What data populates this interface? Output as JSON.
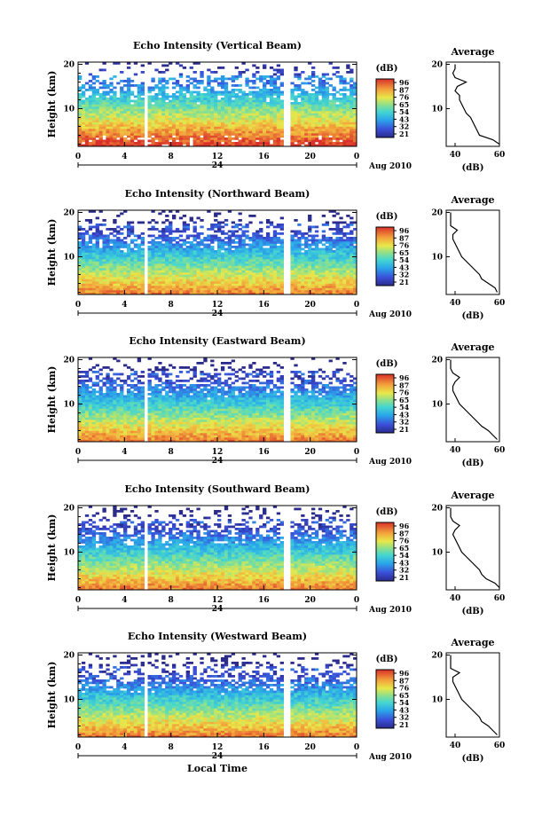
{
  "chart_data": [
    {
      "type": "heatmap",
      "title": "Echo Intensity (Vertical Beam)",
      "ylabel": "Height (km)",
      "x_ticks": [
        "0",
        "4",
        "8",
        "12",
        "16",
        "20",
        "0"
      ],
      "xlim": [
        0,
        24
      ],
      "y_ticks": [
        "10",
        "20"
      ],
      "ylim": [
        1.5,
        20.5
      ],
      "date_mid_label": "24",
      "date_label": "Aug 2010",
      "gaps_hours": [
        [
          5.7,
          6.1
        ],
        [
          17.8,
          18.2
        ]
      ],
      "colorbar": {
        "unit": "(dB)",
        "ticks": [
          "96",
          "87",
          "76",
          "65",
          "54",
          "43",
          "32",
          "21"
        ]
      },
      "profile": {
        "title": "Average",
        "xlabel": "(dB)",
        "x_ticks": [
          "40",
          "60"
        ],
        "xlim": [
          36,
          60
        ],
        "y_ticks": [
          "10",
          "20"
        ],
        "ylim": [
          1.5,
          20.5
        ],
        "height_km": [
          2,
          3,
          4,
          5,
          6,
          7,
          8,
          9,
          10,
          11,
          12,
          13,
          14,
          15,
          16,
          17,
          18,
          19,
          20
        ],
        "db": [
          60,
          57,
          51,
          50,
          49,
          48,
          47,
          45,
          44,
          43,
          42,
          42,
          40,
          41,
          45,
          40,
          39,
          40,
          40
        ]
      }
    },
    {
      "type": "heatmap",
      "title": "Echo Intensity (Northward Beam)",
      "ylabel": "Height (km)",
      "x_ticks": [
        "0",
        "4",
        "8",
        "12",
        "16",
        "20",
        "0"
      ],
      "xlim": [
        0,
        24
      ],
      "y_ticks": [
        "10",
        "20"
      ],
      "ylim": [
        1.5,
        20.5
      ],
      "date_mid_label": "24",
      "date_label": "Aug 2010",
      "gaps_hours": [
        [
          5.7,
          6.1
        ],
        [
          17.8,
          18.2
        ]
      ],
      "colorbar": {
        "unit": "(dB)",
        "ticks": [
          "96",
          "87",
          "76",
          "65",
          "54",
          "43",
          "32",
          "21"
        ]
      },
      "profile": {
        "title": "Average",
        "xlabel": "(dB)",
        "x_ticks": [
          "40",
          "60"
        ],
        "xlim": [
          36,
          60
        ],
        "y_ticks": [
          "10",
          "20"
        ],
        "ylim": [
          1.5,
          20.5
        ],
        "height_km": [
          2,
          3,
          4,
          5,
          6,
          7,
          8,
          9,
          10,
          11,
          12,
          13,
          14,
          15,
          16,
          17,
          18,
          19,
          20
        ],
        "db": [
          59,
          58,
          55,
          52,
          51,
          49,
          47,
          45,
          43,
          42,
          41,
          40,
          39,
          39,
          41,
          38,
          38,
          38,
          38
        ]
      }
    },
    {
      "type": "heatmap",
      "title": "Echo Intensity (Eastward Beam)",
      "ylabel": "Height (km)",
      "x_ticks": [
        "0",
        "4",
        "8",
        "12",
        "16",
        "20",
        "0"
      ],
      "xlim": [
        0,
        24
      ],
      "y_ticks": [
        "10",
        "20"
      ],
      "ylim": [
        1.5,
        20.5
      ],
      "date_mid_label": "24",
      "date_label": "Aug 2010",
      "gaps_hours": [
        [
          5.7,
          6.1
        ],
        [
          17.8,
          18.2
        ]
      ],
      "colorbar": {
        "unit": "(dB)",
        "ticks": [
          "96",
          "87",
          "76",
          "65",
          "54",
          "43",
          "32",
          "21"
        ]
      },
      "profile": {
        "title": "Average",
        "xlabel": "(dB)",
        "x_ticks": [
          "40",
          "60"
        ],
        "xlim": [
          36,
          60
        ],
        "y_ticks": [
          "10",
          "20"
        ],
        "ylim": [
          1.5,
          20.5
        ],
        "height_km": [
          2,
          3,
          4,
          5,
          6,
          7,
          8,
          9,
          10,
          11,
          12,
          13,
          14,
          15,
          16,
          17,
          18,
          19,
          20
        ],
        "db": [
          59,
          57,
          55,
          52,
          50,
          48,
          46,
          44,
          42,
          41,
          40,
          39,
          39,
          40,
          42,
          39,
          38,
          38,
          38
        ]
      }
    },
    {
      "type": "heatmap",
      "title": "Echo Intensity (Southward Beam)",
      "ylabel": "Height (km)",
      "x_ticks": [
        "0",
        "4",
        "8",
        "12",
        "16",
        "20",
        "0"
      ],
      "xlim": [
        0,
        24
      ],
      "y_ticks": [
        "10",
        "20"
      ],
      "ylim": [
        1.5,
        20.5
      ],
      "date_mid_label": "24",
      "date_label": "Aug 2010",
      "gaps_hours": [
        [
          5.7,
          6.1
        ],
        [
          17.8,
          18.2
        ]
      ],
      "colorbar": {
        "unit": "(dB)",
        "ticks": [
          "96",
          "87",
          "76",
          "65",
          "54",
          "43",
          "32",
          "21"
        ]
      },
      "profile": {
        "title": "Average",
        "xlabel": "(dB)",
        "x_ticks": [
          "40",
          "60"
        ],
        "xlim": [
          36,
          60
        ],
        "y_ticks": [
          "10",
          "20"
        ],
        "ylim": [
          1.5,
          20.5
        ],
        "height_km": [
          2,
          3,
          4,
          5,
          6,
          7,
          8,
          9,
          10,
          11,
          12,
          13,
          14,
          15,
          16,
          17,
          18,
          19,
          20
        ],
        "db": [
          60,
          58,
          54,
          52,
          51,
          49,
          47,
          45,
          43,
          42,
          41,
          40,
          39,
          40,
          42,
          39,
          38,
          38,
          38
        ]
      }
    },
    {
      "type": "heatmap",
      "title": "Echo Intensity (Westward Beam)",
      "ylabel": "Height (km)",
      "xlabel": "Local Time",
      "x_ticks": [
        "0",
        "4",
        "8",
        "12",
        "16",
        "20",
        "0"
      ],
      "xlim": [
        0,
        24
      ],
      "y_ticks": [
        "10",
        "20"
      ],
      "ylim": [
        1.5,
        20.5
      ],
      "date_mid_label": "24",
      "date_label": "Aug 2010",
      "gaps_hours": [
        [
          5.7,
          6.1
        ],
        [
          17.8,
          18.2
        ]
      ],
      "colorbar": {
        "unit": "(dB)",
        "ticks": [
          "96",
          "87",
          "76",
          "65",
          "54",
          "43",
          "32",
          "21"
        ]
      },
      "profile": {
        "title": "Average",
        "xlabel": "(dB)",
        "x_ticks": [
          "40",
          "60"
        ],
        "xlim": [
          36,
          60
        ],
        "y_ticks": [
          "10",
          "20"
        ],
        "ylim": [
          1.5,
          20.5
        ],
        "height_km": [
          2,
          3,
          4,
          5,
          6,
          7,
          8,
          9,
          10,
          11,
          12,
          13,
          14,
          15,
          16,
          17,
          18,
          19,
          20
        ],
        "db": [
          59,
          57,
          55,
          52,
          51,
          49,
          47,
          45,
          43,
          42,
          41,
          40,
          39,
          39,
          42,
          38,
          38,
          38,
          38
        ]
      }
    }
  ]
}
